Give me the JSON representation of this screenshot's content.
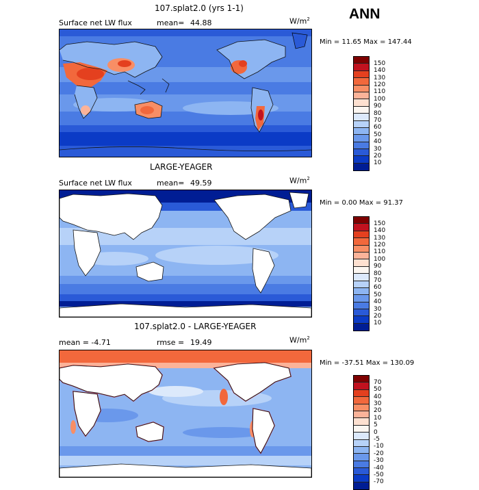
{
  "season": "ANN",
  "panels": [
    {
      "title": "107.splat2.0 (yrs 1-1)",
      "left_label": "Surface net LW flux",
      "stat_label": "mean=",
      "stat_value": "44.88",
      "units": "W/m",
      "units_sup": "2",
      "minmax": "Min =  11.65 Max = 147.44",
      "levels": [
        "150",
        "140",
        "130",
        "120",
        "110",
        "100",
        "90",
        "80",
        "70",
        "60",
        "50",
        "40",
        "30",
        "20",
        "10"
      ],
      "colors": [
        "#7f0000",
        "#c1121f",
        "#e4401f",
        "#f2683c",
        "#f88e65",
        "#fbb399",
        "#fde0d0",
        "#fbf6f1",
        "#dce9fb",
        "#b7d2f8",
        "#8db5f2",
        "#6a98eb",
        "#4a7be3",
        "#2a5ad7",
        "#0b3bc6",
        "#001d94"
      ],
      "land_masked": false
    },
    {
      "title": "LARGE-YEAGER",
      "left_label": "Surface net LW flux",
      "stat_label": "mean=",
      "stat_value": "49.59",
      "units": "W/m",
      "units_sup": "2",
      "minmax": "Min =   0.00 Max =  91.37",
      "levels": [
        "150",
        "140",
        "130",
        "120",
        "110",
        "100",
        "90",
        "80",
        "70",
        "60",
        "50",
        "40",
        "30",
        "20",
        "10"
      ],
      "colors": [
        "#7f0000",
        "#c1121f",
        "#e4401f",
        "#f2683c",
        "#f88e65",
        "#fbb399",
        "#fde0d0",
        "#fbf6f1",
        "#dce9fb",
        "#b7d2f8",
        "#8db5f2",
        "#6a98eb",
        "#4a7be3",
        "#2a5ad7",
        "#0b3bc6",
        "#001d94"
      ],
      "land_masked": true
    },
    {
      "title": "107.splat2.0 - LARGE-YEAGER",
      "left_label": "mean =   -4.71",
      "stat_label": "rmse =",
      "stat_value": "19.49",
      "units": "W/m",
      "units_sup": "2",
      "minmax": "Min = -37.51 Max = 130.09",
      "levels": [
        "70",
        "50",
        "40",
        "30",
        "20",
        "10",
        "5",
        "0",
        "-5",
        "-10",
        "-20",
        "-30",
        "-40",
        "-50",
        "-70"
      ],
      "colors": [
        "#7f0000",
        "#c1121f",
        "#e4401f",
        "#f2683c",
        "#f88e65",
        "#fbb399",
        "#fde0d0",
        "#fbf6f1",
        "#dce9fb",
        "#b7d2f8",
        "#8db5f2",
        "#6a98eb",
        "#4a7be3",
        "#2a5ad7",
        "#0b3bc6",
        "#001d94"
      ],
      "land_masked": true
    }
  ]
}
